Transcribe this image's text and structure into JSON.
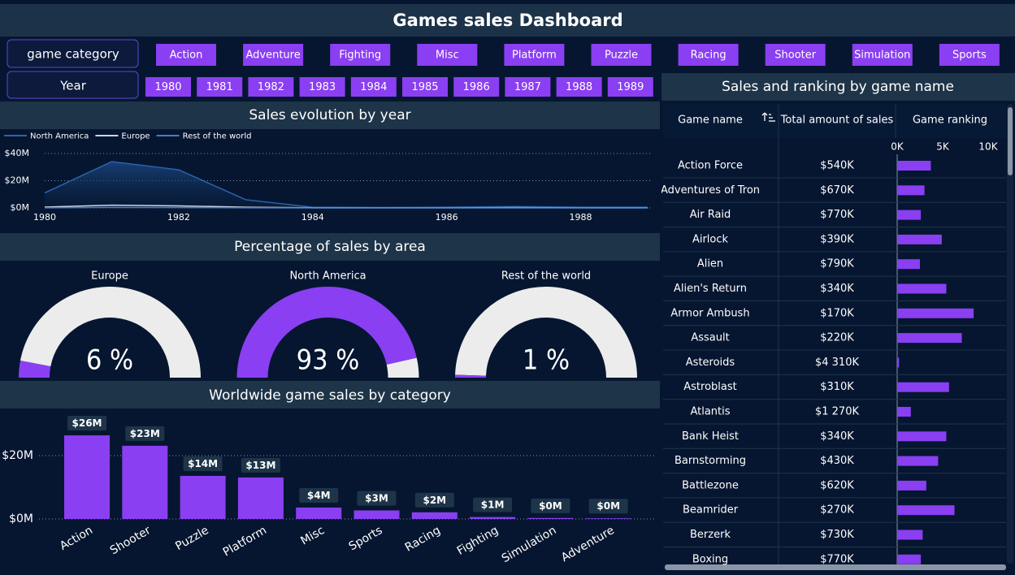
{
  "title": "Games sales Dashboard",
  "filters": {
    "category_label": "game category",
    "categories": [
      "Action",
      "Adventure",
      "Fighting",
      "Misc",
      "Platform",
      "Puzzle",
      "Racing",
      "Shooter",
      "Simulation",
      "Sports"
    ],
    "year_label": "Year",
    "years": [
      "1980",
      "1981",
      "1982",
      "1983",
      "1984",
      "1985",
      "1986",
      "1987",
      "1988",
      "1989"
    ]
  },
  "chart_data": [
    {
      "type": "line",
      "title": "Sales evolution by year",
      "area": true,
      "grid": true,
      "x": [
        1980,
        1981,
        1982,
        1983,
        1984,
        1985,
        1986,
        1987,
        1988,
        1989
      ],
      "xlim": [
        1980,
        1989
      ],
      "xticks": [
        1980,
        1982,
        1984,
        1986,
        1988
      ],
      "ylim": [
        0,
        42
      ],
      "yticks": [
        {
          "value": 0,
          "label": "$0M"
        },
        {
          "value": 20,
          "label": "$20M"
        },
        {
          "value": 40,
          "label": "$40M"
        }
      ],
      "series": [
        {
          "name": "North America",
          "color": "#2a64b0",
          "values": [
            11,
            34,
            28,
            6,
            0.5,
            0.3,
            0.5,
            1,
            0.5,
            0.5
          ]
        },
        {
          "name": "Europe",
          "color": "#c8d6ea",
          "values": [
            0.6,
            2,
            1.5,
            0.5,
            0.1,
            0.1,
            0.1,
            0.2,
            0.1,
            0.1
          ]
        },
        {
          "name": "Rest of the world",
          "color": "#4a7cc0",
          "values": [
            0.1,
            0.4,
            0.3,
            0.1,
            0,
            0,
            0,
            0,
            0,
            0
          ]
        }
      ]
    },
    {
      "type": "gauge",
      "title": "Percentage of sales by area",
      "ylim": [
        0,
        100
      ],
      "color": "#8a3ff2",
      "track_color": "#ececec",
      "categories": [
        "Europe",
        "North America",
        "Rest of the world"
      ],
      "values": [
        6,
        93,
        1
      ],
      "value_labels": [
        "6 %",
        "93 %",
        "1 %"
      ]
    },
    {
      "type": "bar",
      "title": "Worldwide game sales by category",
      "color": "#8a3ff2",
      "grid": true,
      "categories": [
        "Action",
        "Shooter",
        "Puzzle",
        "Platform",
        "Misc",
        "Sports",
        "Racing",
        "Fighting",
        "Simulation",
        "Adventure"
      ],
      "values": [
        26.4,
        23.1,
        13.6,
        13.1,
        3.6,
        2.7,
        2.1,
        0.6,
        0.3,
        0.2
      ],
      "value_labels": [
        "$26M",
        "$23M",
        "$14M",
        "$13M",
        "$4M",
        "$3M",
        "$2M",
        "$1M",
        "$0M",
        "$0M"
      ],
      "ylim": [
        0,
        33
      ],
      "yticks": [
        {
          "value": 0,
          "label": "$0M"
        },
        {
          "value": 20,
          "label": "$20M"
        }
      ]
    }
  ],
  "table": {
    "title": "Sales and ranking by game name",
    "columns": [
      "Game name",
      "Total amount of sales",
      "Game ranking"
    ],
    "ranking_color": "#8a3ff2",
    "ranking_xlim": [
      0,
      11000
    ],
    "ranking_xticks": [
      {
        "value": 0,
        "label": "0K"
      },
      {
        "value": 5000,
        "label": "5K"
      },
      {
        "value": 10000,
        "label": "10K"
      }
    ],
    "rows": [
      {
        "name": "Action Force",
        "sales": "$540K",
        "ranking": 3700
      },
      {
        "name": "Adventures of Tron",
        "sales": "$670K",
        "ranking": 3000
      },
      {
        "name": "Air Raid",
        "sales": "$770K",
        "ranking": 2600
      },
      {
        "name": "Airlock",
        "sales": "$390K",
        "ranking": 4900
      },
      {
        "name": "Alien",
        "sales": "$790K",
        "ranking": 2500
      },
      {
        "name": "Alien's Return",
        "sales": "$340K",
        "ranking": 5400
      },
      {
        "name": "Armor Ambush",
        "sales": "$170K",
        "ranking": 8400
      },
      {
        "name": "Assault",
        "sales": "$220K",
        "ranking": 7100
      },
      {
        "name": "Asteroids",
        "sales": "$4 310K",
        "ranking": 200
      },
      {
        "name": "Astroblast",
        "sales": "$310K",
        "ranking": 5700
      },
      {
        "name": "Atlantis",
        "sales": "$1 270K",
        "ranking": 1500
      },
      {
        "name": "Bank Heist",
        "sales": "$340K",
        "ranking": 5400
      },
      {
        "name": "Barnstorming",
        "sales": "$430K",
        "ranking": 4500
      },
      {
        "name": "Battlezone",
        "sales": "$620K",
        "ranking": 3200
      },
      {
        "name": "Beamrider",
        "sales": "$270K",
        "ranking": 6300
      },
      {
        "name": "Berzerk",
        "sales": "$730K",
        "ranking": 2800
      },
      {
        "name": "Boxing",
        "sales": "$770K",
        "ranking": 2600
      }
    ]
  }
}
